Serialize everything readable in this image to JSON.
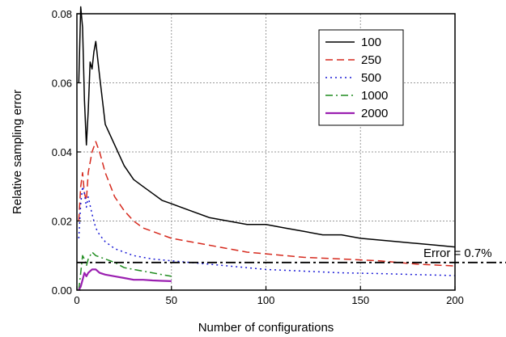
{
  "chart_data": {
    "type": "line",
    "xlabel": "Number of configurations",
    "ylabel": "Relative sampling error",
    "xlim": [
      0,
      200
    ],
    "ylim": [
      0,
      0.08
    ],
    "x_ticks": [
      "0",
      "50",
      "100",
      "150",
      "200"
    ],
    "y_ticks": [
      "0.00",
      "0.02",
      "0.04",
      "0.06",
      "0.08"
    ],
    "grid": true,
    "legend_position": "top-right",
    "annotation": {
      "text": "Error = 0.7%",
      "y": 0.008
    },
    "series": [
      {
        "name": "100",
        "color": "#000000",
        "dash": "solid",
        "x": [
          1,
          2,
          3,
          4,
          5,
          6,
          7,
          8,
          9,
          10,
          12,
          15,
          20,
          25,
          30,
          35,
          40,
          45,
          50,
          60,
          70,
          80,
          90,
          100,
          110,
          120,
          130,
          140,
          150,
          160,
          170,
          180,
          190,
          200
        ],
        "y": [
          0.06,
          0.082,
          0.076,
          0.055,
          0.042,
          0.052,
          0.066,
          0.064,
          0.069,
          0.072,
          0.062,
          0.048,
          0.042,
          0.036,
          0.032,
          0.03,
          0.028,
          0.026,
          0.025,
          0.023,
          0.021,
          0.02,
          0.019,
          0.019,
          0.018,
          0.017,
          0.016,
          0.016,
          0.015,
          0.0145,
          0.014,
          0.0135,
          0.013,
          0.0125
        ]
      },
      {
        "name": "250",
        "color": "#d62a1e",
        "dash": "dashed",
        "x": [
          1,
          2,
          3,
          4,
          5,
          6,
          8,
          10,
          12,
          15,
          20,
          25,
          30,
          35,
          40,
          50,
          60,
          70,
          80,
          90,
          100,
          120,
          140,
          160,
          180,
          200
        ],
        "y": [
          0.02,
          0.03,
          0.034,
          0.028,
          0.026,
          0.034,
          0.04,
          0.043,
          0.04,
          0.034,
          0.027,
          0.023,
          0.02,
          0.018,
          0.017,
          0.015,
          0.014,
          0.013,
          0.012,
          0.011,
          0.0105,
          0.0095,
          0.009,
          0.0085,
          0.0075,
          0.007
        ]
      },
      {
        "name": "500",
        "color": "#1a1ad6",
        "dash": "dotted",
        "x": [
          1,
          2,
          3,
          4,
          5,
          6,
          8,
          10,
          12,
          15,
          20,
          25,
          30,
          40,
          50,
          60,
          70,
          80,
          90,
          100,
          120,
          140,
          160,
          180,
          200
        ],
        "y": [
          0.015,
          0.025,
          0.03,
          0.028,
          0.024,
          0.027,
          0.022,
          0.018,
          0.016,
          0.014,
          0.012,
          0.011,
          0.01,
          0.009,
          0.0085,
          0.008,
          0.0075,
          0.007,
          0.0065,
          0.006,
          0.0055,
          0.005,
          0.0048,
          0.0045,
          0.0042
        ]
      },
      {
        "name": "1000",
        "color": "#1f8c1f",
        "dash": "dashdot",
        "x": [
          1,
          2,
          3,
          4,
          5,
          6,
          8,
          10,
          15,
          20,
          25,
          30,
          35,
          40,
          45,
          50
        ],
        "y": [
          0.0,
          0.005,
          0.01,
          0.009,
          0.007,
          0.009,
          0.011,
          0.01,
          0.009,
          0.008,
          0.0065,
          0.006,
          0.0055,
          0.005,
          0.0045,
          0.004
        ]
      },
      {
        "name": "2000",
        "color": "#9a1fb0",
        "dash": "solid",
        "x": [
          1,
          2,
          3,
          4,
          5,
          6,
          8,
          10,
          12,
          15,
          20,
          25,
          30,
          35,
          40,
          45,
          50
        ],
        "y": [
          0.0,
          0.001,
          0.003,
          0.005,
          0.004,
          0.005,
          0.006,
          0.006,
          0.005,
          0.0045,
          0.004,
          0.0035,
          0.003,
          0.003,
          0.0028,
          0.0027,
          0.0026
        ]
      }
    ]
  }
}
